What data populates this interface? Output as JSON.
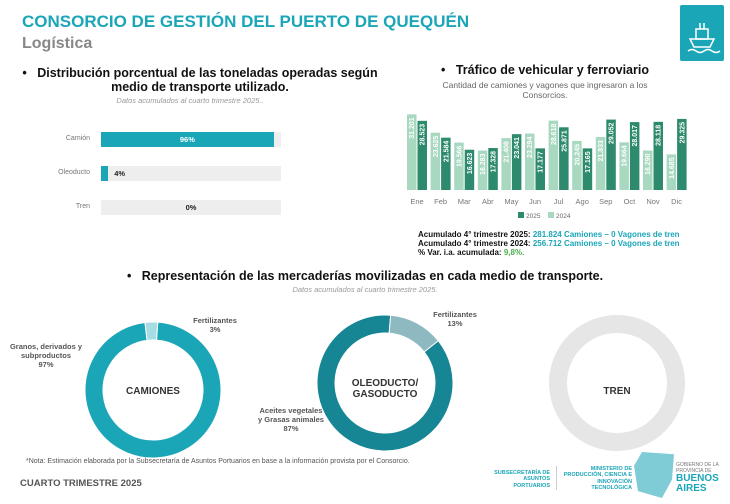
{
  "header": {
    "title": "CONSORCIO DE GESTIÓN DEL PUERTO DE QUEQUÉN",
    "subtitle": "Logística"
  },
  "left": {
    "heading_line1": "Distribución porcentual de las toneladas operadas según",
    "heading_line2": "medio de transporte utilizado.",
    "note": "Datos acumulados al cuarto trimestre 2025.."
  },
  "right": {
    "heading": "Tráfico de vehicular y ferroviario",
    "desc_line1": "Cantidad de camiones y vagones que ingresaron a los",
    "desc_line2": "Consorcios.",
    "summary": [
      {
        "label": "Acumulado 4° trimestre 2025:",
        "value": "281.824 Camiones – 0 Vagones de tren"
      },
      {
        "label": "Acumulado 4° trimestre 2024:",
        "value": "256.712 Camiones – 0 Vagones de tren"
      },
      {
        "label": "% Var. i.a. acumulada:",
        "value": "9,8%."
      }
    ]
  },
  "bottom": {
    "heading": "Representación de las mercaderías movilizadas en cada medio de transporte.",
    "note": "Datos acumulados al cuarto trimestre 2025."
  },
  "footer": {
    "note": "*Nota: Estimación elaborada por la Subsecretaría de Asuntos Portuarios en base a la información provista por el Consorcio.",
    "period": "CUARTO TRIMESTRE 2025",
    "logo1": "SUBSECRETARÍA DE ASUNTOS PORTUARIOS",
    "logo2": "MINISTERIO DE PRODUCCIÓN, CIENCIA E INNOVACIÓN TECNOLÓGICA",
    "logo3_small": "GOBIERNO DE LA PROVINCIA DE",
    "logo3_big": "BUENOS AIRES"
  },
  "chart_data": [
    {
      "type": "bar",
      "orientation": "horizontal",
      "categories": [
        "Camión",
        "Oleoducto",
        "Tren"
      ],
      "values": [
        96,
        4,
        0
      ],
      "labels": [
        "96%",
        "4%",
        "0%"
      ],
      "xlim": [
        0,
        100
      ],
      "color": "#1ba6b8"
    },
    {
      "type": "bar",
      "title": "Tráfico de vehicular y ferroviario",
      "categories": [
        "Ene",
        "Feb",
        "Mar",
        "Abr",
        "May",
        "Jun",
        "Jul",
        "Ago",
        "Sep",
        "Oct",
        "Nov",
        "Dic"
      ],
      "series": [
        {
          "name": "2024",
          "color": "#a8d8bf",
          "values": [
            31201,
            23625,
            19566,
            16283,
            21408,
            23294,
            28618,
            20245,
            21833,
            19664,
            16290,
            14685
          ],
          "labels": [
            "31.201",
            "23.625",
            "19.566",
            "16.283",
            "21.408",
            "23.294",
            "28.618",
            "20.245",
            "21.833",
            "19.664",
            "16.290",
            "14.685"
          ]
        },
        {
          "name": "2025",
          "color": "#2e8a6d",
          "values": [
            28523,
            21584,
            16623,
            17328,
            23041,
            17177,
            25871,
            17165,
            29052,
            28017,
            28118,
            29325
          ],
          "labels": [
            "28.523",
            "21.584",
            "16.623",
            "17.328",
            "23.041",
            "17.177",
            "25.871",
            "17.165",
            "29.052",
            "28.017",
            "28.118",
            "29.325"
          ]
        }
      ],
      "legend": [
        "2025",
        "2024"
      ],
      "ylim": [
        0,
        33000
      ]
    },
    {
      "type": "pie",
      "title": "CAMIONES",
      "slices": [
        {
          "label": "Granos, derivados y subproductos",
          "value": 97,
          "text": "97%",
          "color": "#1ba6b8"
        },
        {
          "label": "Fertilizantes",
          "value": 3,
          "text": "3%",
          "color": "#a6dde5"
        }
      ]
    },
    {
      "type": "pie",
      "title": "OLEODUCTO/ GASODUCTO",
      "slices": [
        {
          "label": "Aceites vegetales y Grasas animales",
          "value": 87,
          "text": "87%",
          "color": "#168594"
        },
        {
          "label": "Fertilizantes",
          "value": 13,
          "text": "13%",
          "color": "#8fb9c1"
        }
      ]
    },
    {
      "type": "pie",
      "title": "TREN",
      "slices": [
        {
          "label": "",
          "value": 100,
          "text": "",
          "color": "#e6e6e6"
        }
      ]
    }
  ]
}
